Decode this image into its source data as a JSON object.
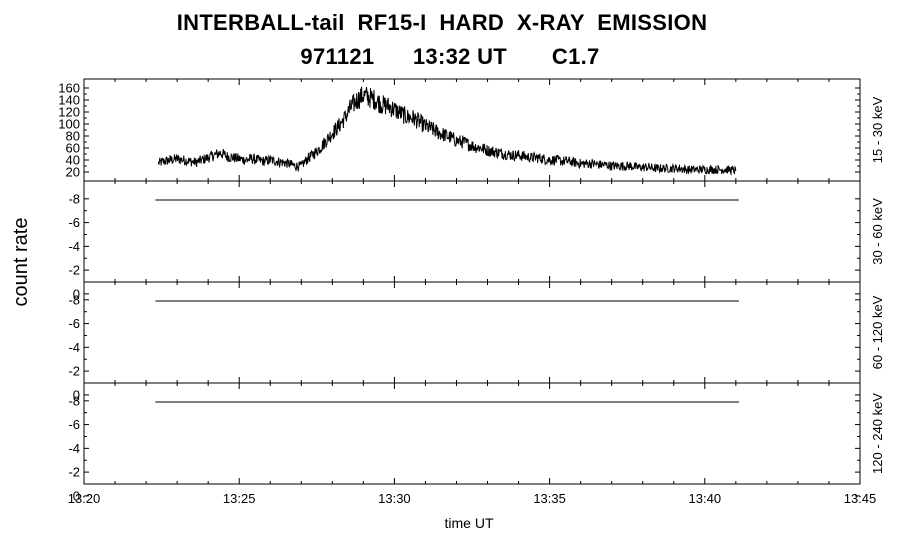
{
  "title_line1": "INTERBALL-tail  RF15-I  HARD  X-RAY  EMISSION",
  "title_line2": "971121      13:32 UT       C1.7",
  "chart_data": {
    "type": "line",
    "xlabel": "time UT",
    "ylabel": "count rate",
    "x_ticks": [
      "13:20",
      "13:25",
      "13:30",
      "13:35",
      "13:40",
      "13:45"
    ],
    "x_range_min": [
      0,
      25
    ],
    "panels": [
      {
        "name": "15 - 30 keV",
        "y_ticks": [
          20,
          40,
          60,
          80,
          100,
          120,
          140,
          160
        ],
        "ylim": [
          5,
          175
        ],
        "x_min": [
          2.4,
          2.6,
          2.8,
          3.0,
          3.2,
          3.4,
          3.6,
          3.8,
          4.0,
          4.2,
          4.4,
          4.6,
          4.8,
          5.0,
          5.2,
          5.4,
          5.6,
          5.8,
          6.0,
          6.2,
          6.4,
          6.6,
          6.8,
          7.0,
          7.2,
          7.4,
          7.6,
          7.8,
          8.0,
          8.2,
          8.4,
          8.6,
          8.8,
          9.0,
          9.2,
          9.4,
          9.6,
          9.8,
          10.0,
          10.2,
          10.4,
          10.6,
          10.8,
          11.0,
          11.2,
          11.4,
          11.6,
          11.8,
          12.0,
          12.2,
          12.4,
          12.6,
          12.8,
          13.0,
          13.2,
          13.4,
          13.6,
          13.8,
          14.0,
          14.2,
          14.4,
          14.6,
          14.8,
          15.0,
          15.2,
          15.4,
          15.6,
          15.8,
          16.0,
          16.2,
          16.4,
          16.6,
          16.8,
          17.0,
          17.2,
          17.4,
          17.6,
          17.8,
          18.0,
          18.2,
          18.4,
          18.6,
          18.8,
          19.0,
          19.2,
          19.4,
          19.6,
          19.8,
          20.0,
          20.2,
          20.4,
          20.6,
          20.8,
          21.0
        ],
        "values": [
          35,
          38,
          40,
          42,
          40,
          38,
          36,
          40,
          44,
          48,
          52,
          46,
          44,
          42,
          40,
          42,
          40,
          38,
          40,
          38,
          36,
          34,
          30,
          30,
          42,
          50,
          60,
          72,
          85,
          96,
          110,
          128,
          140,
          148,
          144,
          140,
          132,
          130,
          124,
          118,
          112,
          110,
          104,
          96,
          92,
          86,
          82,
          78,
          72,
          70,
          66,
          62,
          60,
          56,
          54,
          52,
          50,
          48,
          48,
          46,
          44,
          44,
          42,
          40,
          40,
          38,
          38,
          36,
          34,
          34,
          34,
          32,
          32,
          30,
          30,
          30,
          30,
          28,
          28,
          28,
          26,
          26,
          26,
          26,
          26,
          24,
          24,
          24,
          24,
          24,
          24,
          24,
          24,
          22
        ]
      },
      {
        "name": "30 - 60 keV",
        "y_ticks": [
          -8,
          -6,
          -4,
          -2,
          0
        ],
        "ylim": [
          -1,
          -9.5
        ],
        "x_min": [
          2.3,
          21.1
        ],
        "values": [
          -7.9,
          -7.9
        ]
      },
      {
        "name": "60 - 120 keV",
        "y_ticks": [
          -8,
          -6,
          -4,
          -2,
          0
        ],
        "ylim": [
          -1,
          -9.5
        ],
        "x_min": [
          2.3,
          21.1
        ],
        "values": [
          -7.9,
          -7.9
        ]
      },
      {
        "name": "120 - 240 keV",
        "y_ticks": [
          -8,
          -6,
          -4,
          -2,
          0
        ],
        "ylim": [
          -1,
          -9.5
        ],
        "x_min": [
          2.3,
          21.1
        ],
        "values": [
          -7.9,
          -7.9
        ]
      }
    ]
  }
}
